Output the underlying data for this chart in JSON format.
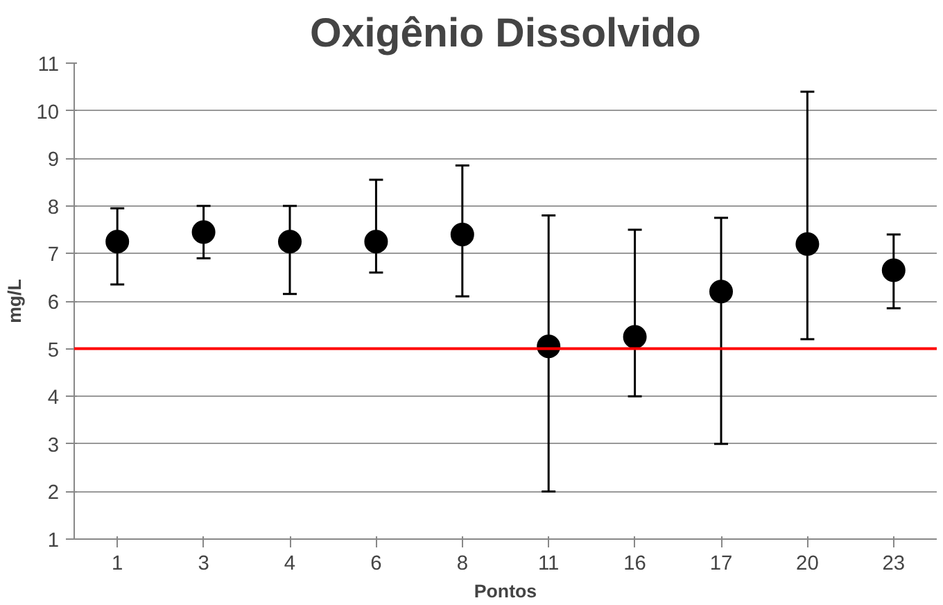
{
  "chart_data": {
    "type": "scatter",
    "title": "Oxigênio Dissolvido",
    "xlabel": "Pontos",
    "ylabel": "mg/L",
    "categories": [
      "1",
      "3",
      "4",
      "6",
      "8",
      "11",
      "16",
      "17",
      "20",
      "23"
    ],
    "values": [
      7.25,
      7.45,
      7.25,
      7.25,
      7.4,
      5.05,
      5.25,
      6.2,
      7.2,
      6.65
    ],
    "errors": [
      [
        6.35,
        7.95
      ],
      [
        6.9,
        8.0
      ],
      [
        6.15,
        8.0
      ],
      [
        6.6,
        8.55
      ],
      [
        6.1,
        8.85
      ],
      [
        2.0,
        7.8
      ],
      [
        4.0,
        7.5
      ],
      [
        3.0,
        7.75
      ],
      [
        5.2,
        10.4
      ],
      [
        5.85,
        7.4
      ]
    ],
    "color": "#000000",
    "marker": "circle",
    "ylim": [
      1,
      11
    ],
    "yticks": [
      1,
      2,
      3,
      4,
      5,
      6,
      7,
      8,
      9,
      10,
      11
    ],
    "grid": "y",
    "ref_lines": [
      {
        "axis": "y",
        "value": 5,
        "color": "#ff0000"
      }
    ]
  }
}
